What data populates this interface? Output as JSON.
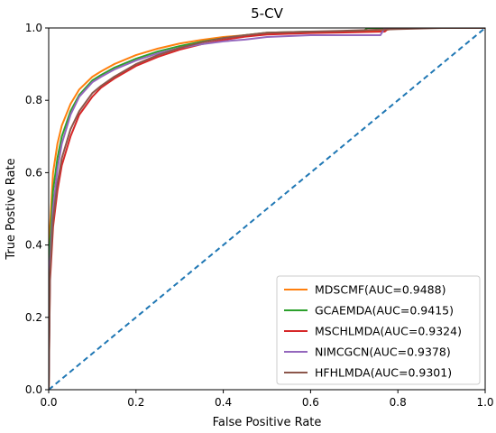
{
  "chart_data": {
    "type": "line",
    "title": "5-CV",
    "xlabel": "False Positive Rate",
    "ylabel": "True Postive Rate",
    "xlim": [
      0,
      1
    ],
    "ylim": [
      0,
      1
    ],
    "xticks": [
      "0.0",
      "0.2",
      "0.4",
      "0.6",
      "0.8",
      "1.0"
    ],
    "yticks": [
      "0.0",
      "0.2",
      "0.4",
      "0.6",
      "0.8",
      "1.0"
    ],
    "grid": false,
    "legend_position": "bottom-right",
    "series": [
      {
        "name": "MDSCMF(AUC=0.9488)",
        "color": "#ff7f0e",
        "x": [
          0,
          0.003,
          0.01,
          0.02,
          0.03,
          0.05,
          0.07,
          0.1,
          0.12,
          0.15,
          0.2,
          0.25,
          0.3,
          0.35,
          0.4,
          0.45,
          0.5,
          0.6,
          0.7,
          0.75,
          0.8,
          0.9,
          1.0
        ],
        "y": [
          0,
          0.45,
          0.6,
          0.68,
          0.73,
          0.79,
          0.83,
          0.865,
          0.88,
          0.9,
          0.925,
          0.943,
          0.957,
          0.967,
          0.975,
          0.98,
          0.985,
          0.988,
          0.99,
          0.99,
          1.0,
          1.0,
          1.0
        ]
      },
      {
        "name": "GCAEMDA(AUC=0.9415)",
        "color": "#2ca02c",
        "x": [
          0,
          0.003,
          0.01,
          0.02,
          0.03,
          0.05,
          0.07,
          0.1,
          0.12,
          0.15,
          0.2,
          0.25,
          0.3,
          0.35,
          0.4,
          0.45,
          0.5,
          0.6,
          0.7,
          0.72,
          0.73,
          0.8,
          0.9,
          1.0
        ],
        "y": [
          0,
          0.4,
          0.55,
          0.64,
          0.7,
          0.77,
          0.815,
          0.855,
          0.87,
          0.89,
          0.915,
          0.935,
          0.95,
          0.962,
          0.972,
          0.98,
          0.987,
          0.99,
          0.99,
          0.99,
          1.0,
          1.0,
          1.0,
          1.0
        ]
      },
      {
        "name": "MSCHLMDA(AUC=0.9324)",
        "color": "#d62728",
        "x": [
          0,
          0.003,
          0.01,
          0.02,
          0.03,
          0.05,
          0.07,
          0.1,
          0.12,
          0.15,
          0.2,
          0.25,
          0.3,
          0.35,
          0.4,
          0.45,
          0.5,
          0.6,
          0.7,
          0.77,
          0.78,
          0.8,
          0.9,
          1.0
        ],
        "y": [
          0,
          0.3,
          0.45,
          0.55,
          0.62,
          0.7,
          0.76,
          0.81,
          0.835,
          0.86,
          0.895,
          0.92,
          0.94,
          0.955,
          0.967,
          0.976,
          0.982,
          0.986,
          0.988,
          0.99,
          1.0,
          1.0,
          1.0,
          1.0
        ]
      },
      {
        "name": "NIMCGCN(AUC=0.9378)",
        "color": "#9467bd",
        "x": [
          0,
          0.003,
          0.01,
          0.02,
          0.03,
          0.05,
          0.07,
          0.1,
          0.12,
          0.15,
          0.2,
          0.25,
          0.3,
          0.35,
          0.4,
          0.45,
          0.5,
          0.6,
          0.7,
          0.76,
          0.77,
          0.8,
          0.9,
          1.0
        ],
        "y": [
          0,
          0.35,
          0.5,
          0.61,
          0.68,
          0.76,
          0.81,
          0.85,
          0.865,
          0.885,
          0.91,
          0.93,
          0.945,
          0.955,
          0.963,
          0.968,
          0.975,
          0.98,
          0.98,
          0.98,
          1.0,
          1.0,
          1.0,
          1.0
        ]
      },
      {
        "name": "HFHLMDA(AUC=0.9301)",
        "color": "#8c564b",
        "x": [
          0,
          0.003,
          0.01,
          0.02,
          0.03,
          0.05,
          0.07,
          0.1,
          0.12,
          0.15,
          0.2,
          0.25,
          0.3,
          0.35,
          0.4,
          0.45,
          0.5,
          0.6,
          0.7,
          0.8,
          0.9,
          1.0
        ],
        "y": [
          0,
          0.32,
          0.47,
          0.57,
          0.64,
          0.72,
          0.77,
          0.82,
          0.84,
          0.865,
          0.9,
          0.925,
          0.945,
          0.96,
          0.972,
          0.98,
          0.987,
          0.99,
          0.993,
          0.997,
          1.0,
          1.0
        ]
      }
    ],
    "reference_line": {
      "x": [
        0,
        1
      ],
      "y": [
        0,
        1
      ],
      "color": "#1f77b4",
      "style": "dashed"
    }
  }
}
